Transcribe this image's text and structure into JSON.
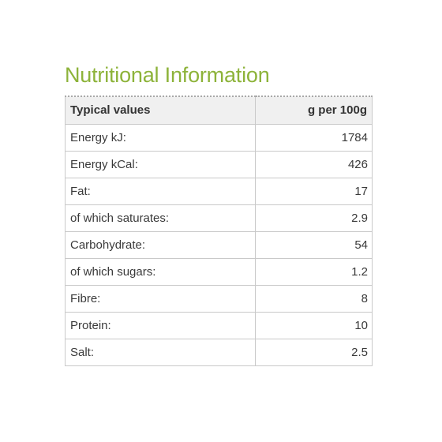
{
  "title": "Nutritional Information",
  "colors": {
    "title": "#8db33a",
    "header_bg": "#f0f0f0",
    "border": "#c9c9c9"
  },
  "table": {
    "headers": {
      "label": "Typical values",
      "value": "g per 100g"
    },
    "rows": [
      {
        "label": "Energy kJ:",
        "value": "1784"
      },
      {
        "label": "Energy kCal:",
        "value": "426"
      },
      {
        "label": "Fat:",
        "value": "17"
      },
      {
        "label": "of which saturates:",
        "value": "2.9"
      },
      {
        "label": "Carbohydrate:",
        "value": "54"
      },
      {
        "label": "of which sugars:",
        "value": "1.2"
      },
      {
        "label": "Fibre:",
        "value": "8"
      },
      {
        "label": "Protein:",
        "value": "10"
      },
      {
        "label": "Salt:",
        "value": "2.5"
      }
    ]
  }
}
